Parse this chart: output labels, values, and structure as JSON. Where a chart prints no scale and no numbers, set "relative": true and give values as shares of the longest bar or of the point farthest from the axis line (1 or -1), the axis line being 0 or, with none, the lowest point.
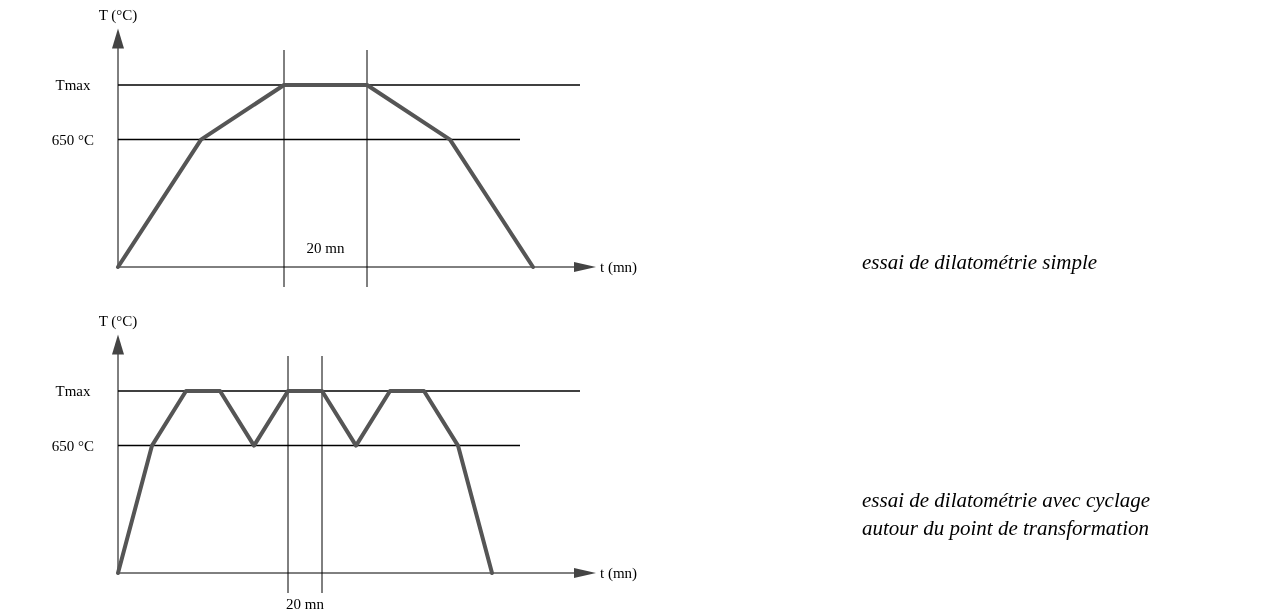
{
  "chart_data": [
    {
      "type": "line",
      "xlabel": "t (mn)",
      "ylabel": "T (°C)",
      "relative": true,
      "categories": [
        null,
        null,
        null,
        null,
        null,
        null
      ],
      "series": [
        {
          "color": "#555555",
          "values": [
            0,
            0.7,
            1,
            1,
            0.7,
            0
          ]
        }
      ],
      "ref_lines": [
        {
          "axis": "y",
          "value": 1,
          "label": "Tmax"
        },
        {
          "axis": "y",
          "value": 0.7,
          "label": "650 °C"
        }
      ],
      "annotations": [
        "20 mn",
        "essai de dilatométrie simple"
      ]
    },
    {
      "type": "line",
      "xlabel": "t (mn)",
      "ylabel": "T (°C)",
      "relative": true,
      "categories": [
        null,
        null,
        null,
        null,
        null,
        null,
        null,
        null,
        null,
        null,
        null,
        null
      ],
      "series": [
        {
          "color": "#555555",
          "values": [
            0,
            0.7,
            1,
            1,
            0.7,
            1,
            1,
            0.7,
            1,
            1,
            0.7,
            0
          ]
        }
      ],
      "ref_lines": [
        {
          "axis": "y",
          "value": 1,
          "label": "Tmax"
        },
        {
          "axis": "y",
          "value": 0.7,
          "label": "650 °C"
        }
      ],
      "annotations": [
        "20 mn",
        "essai de dilatométrie avec cyclage autour du point de transformation"
      ]
    }
  ]
}
